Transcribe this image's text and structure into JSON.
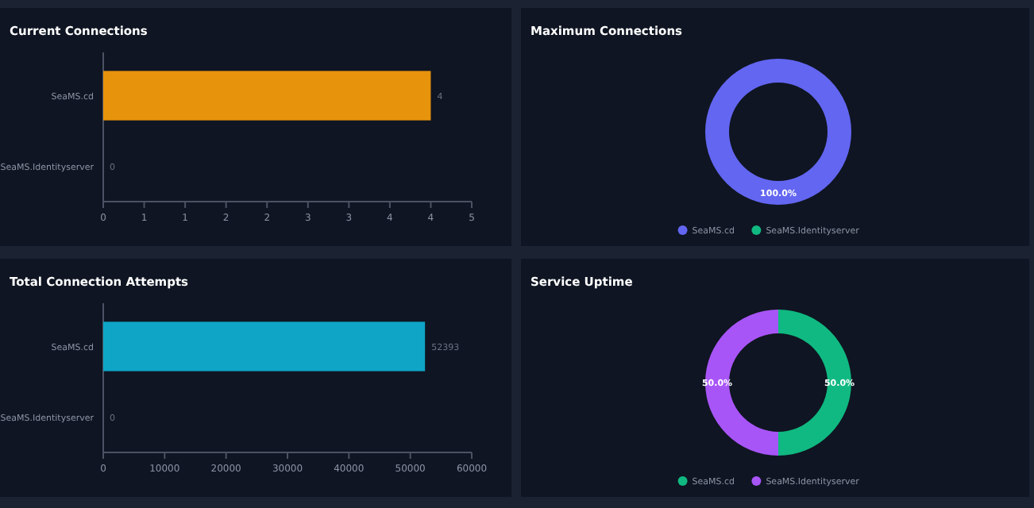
{
  "chart_data": [
    {
      "type": "bar",
      "title": "Current Connections",
      "orientation": "horizontal",
      "categories": [
        "SeaMS.cd",
        "SeaMS.Identityserver"
      ],
      "values": [
        4,
        0
      ],
      "color": "#e8930c",
      "xlim": [
        0,
        4.5
      ],
      "xticks": [
        0,
        {
          "value": 0.5,
          "label": "1"
        },
        1,
        {
          "value": 1.5,
          "label": "2"
        },
        2,
        {
          "value": 2.5,
          "label": "3"
        },
        3,
        {
          "value": 3.5,
          "label": "4"
        },
        4,
        {
          "value": 4.5,
          "label": "5"
        }
      ],
      "data_labels": true
    },
    {
      "type": "donut",
      "title": "Maximum Connections",
      "categories": [
        "SeaMS.cd",
        "SeaMS.Identityserver"
      ],
      "values": [
        100,
        0
      ],
      "colors": [
        "#6366f1",
        "#10b981"
      ],
      "value_labels": [
        "100.0%",
        null
      ],
      "legend": "bottom"
    },
    {
      "type": "bar",
      "title": "Total Connection Attempts",
      "orientation": "horizontal",
      "categories": [
        "SeaMS.cd",
        "SeaMS.Identityserver"
      ],
      "values": [
        52393,
        0
      ],
      "color": "#0ea5c6",
      "xlim": [
        0,
        60000
      ],
      "xticks": [
        0,
        10000,
        20000,
        30000,
        40000,
        50000,
        60000
      ],
      "data_labels": true
    },
    {
      "type": "donut",
      "title": "Service Uptime",
      "categories": [
        "SeaMS.cd",
        "SeaMS.Identityserver"
      ],
      "values": [
        50,
        50
      ],
      "colors": [
        "#10b981",
        "#a855f7"
      ],
      "value_labels": [
        "50.0%",
        "50.0%"
      ],
      "legend": "bottom"
    }
  ]
}
